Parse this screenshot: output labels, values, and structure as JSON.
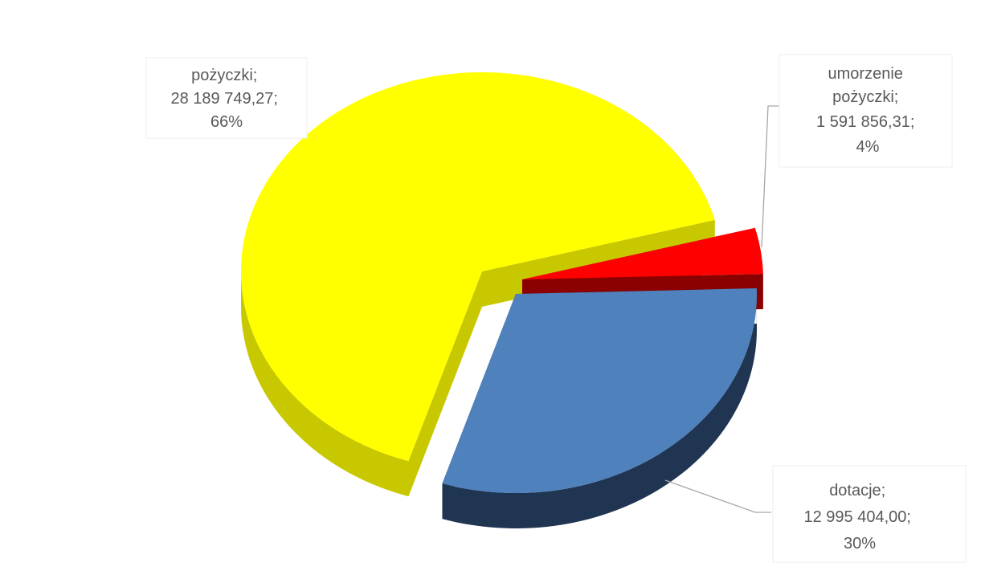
{
  "chart_data": {
    "type": "pie",
    "style": "3d-exploded",
    "title": "",
    "slices": [
      {
        "name": "pożyczki",
        "value": 28189749.27,
        "value_label": "28 189 749,27;",
        "percent_label": "66%",
        "name_label": "pożyczki;",
        "color": "#FFFF00",
        "side_color": "#C8C800"
      },
      {
        "name": "umorzenie pożyczki",
        "value": 1591856.31,
        "value_label": "1 591 856,31;",
        "percent_label": "4%",
        "name_label_lines": [
          "umorzenie",
          "pożyczki;"
        ],
        "color": "#FF0000",
        "side_color": "#8B0000"
      },
      {
        "name": "dotacje",
        "value": 12995404.0,
        "value_label": "12 995 404,00;",
        "percent_label": "30%",
        "name_label": "dotacje;",
        "color": "#4F81BD",
        "side_color": "#1F3552"
      }
    ]
  }
}
